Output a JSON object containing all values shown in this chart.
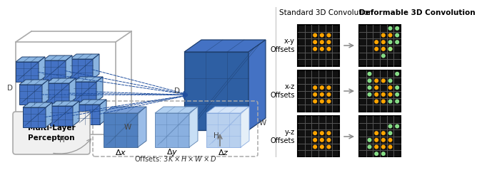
{
  "std_title": "Standard 3D Convolution",
  "def_title": "Deformable 3D Convolution",
  "row_labels": [
    "x-y\nOffsets",
    "x-z\nOffsets",
    "y-z\nOffsets"
  ],
  "std_orange_dots": [
    [
      [
        1,
        2
      ],
      [
        1,
        3
      ],
      [
        1,
        4
      ],
      [
        2,
        2
      ],
      [
        2,
        3
      ],
      [
        2,
        4
      ],
      [
        3,
        2
      ],
      [
        3,
        3
      ],
      [
        3,
        4
      ]
    ],
    [
      [
        2,
        2
      ],
      [
        2,
        3
      ],
      [
        2,
        4
      ],
      [
        3,
        2
      ],
      [
        3,
        3
      ],
      [
        3,
        4
      ],
      [
        4,
        2
      ],
      [
        4,
        3
      ],
      [
        4,
        4
      ]
    ],
    [
      [
        2,
        2
      ],
      [
        2,
        3
      ],
      [
        2,
        4
      ],
      [
        3,
        2
      ],
      [
        3,
        3
      ],
      [
        3,
        4
      ],
      [
        4,
        2
      ],
      [
        4,
        3
      ],
      [
        4,
        4
      ]
    ]
  ],
  "def_orange_dots": [
    [
      [
        1,
        3
      ],
      [
        1,
        4
      ],
      [
        2,
        2
      ],
      [
        2,
        3
      ],
      [
        3,
        2
      ],
      [
        3,
        3
      ],
      [
        3,
        4
      ]
    ],
    [
      [
        1,
        2
      ],
      [
        1,
        3
      ],
      [
        2,
        2
      ],
      [
        2,
        4
      ],
      [
        3,
        2
      ],
      [
        3,
        3
      ],
      [
        3,
        4
      ],
      [
        4,
        2
      ],
      [
        4,
        3
      ]
    ],
    [
      [
        2,
        2
      ],
      [
        2,
        3
      ],
      [
        3,
        2
      ],
      [
        3,
        3
      ],
      [
        3,
        4
      ],
      [
        4,
        2
      ],
      [
        4,
        3
      ],
      [
        4,
        4
      ]
    ]
  ],
  "def_green_dots": [
    [
      [
        0,
        4
      ],
      [
        0,
        5
      ],
      [
        1,
        5
      ],
      [
        2,
        4
      ],
      [
        2,
        5
      ],
      [
        3,
        4
      ],
      [
        4,
        3
      ]
    ],
    [
      [
        0,
        1
      ],
      [
        0,
        5
      ],
      [
        1,
        1
      ],
      [
        1,
        4
      ],
      [
        2,
        1
      ],
      [
        2,
        5
      ],
      [
        3,
        1
      ],
      [
        3,
        5
      ],
      [
        4,
        4
      ],
      [
        4,
        5
      ]
    ],
    [
      [
        1,
        4
      ],
      [
        1,
        5
      ],
      [
        2,
        4
      ],
      [
        3,
        1
      ],
      [
        4,
        1
      ],
      [
        5,
        2
      ],
      [
        5,
        3
      ]
    ]
  ],
  "colors": {
    "cube_face_dark": "#2e5fa3",
    "cube_face_mid": "#4472c4",
    "cube_face_light": "#8ab4e0",
    "cube_face_lighter": "#b8d0ee",
    "cube_edge_dark": "#1f3f6e",
    "cube_outline": "#999999",
    "arrow_blue": "#1f4e9e",
    "orange": "#FFA500",
    "green": "#90EE90",
    "grid_bg": "#111111",
    "grid_line": "#555555",
    "mlp_bg": "#f5f5f5",
    "mlp_border": "#999999"
  }
}
